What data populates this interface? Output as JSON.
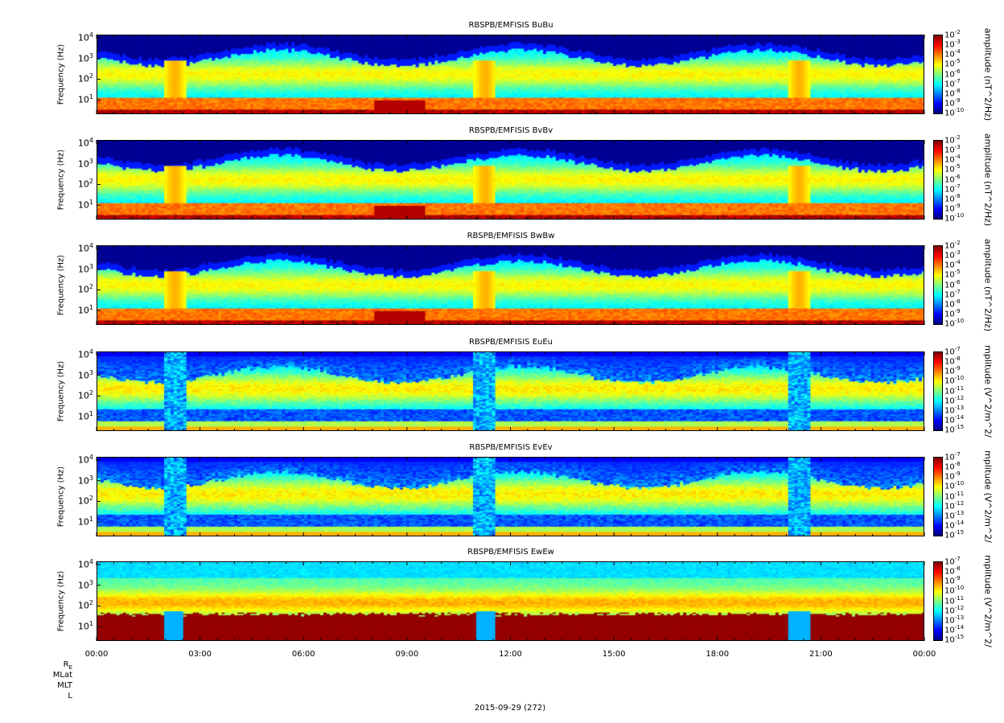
{
  "chart_data": [
    {
      "type": "heatmap",
      "title": "RBSPB/EMFISIS  BuBu",
      "ylabel": "Frequency (Hz)",
      "colorbar_label": "amplitude (nT^2/Hz)",
      "yscale": "log",
      "yticks": [
        "10^1",
        "10^2",
        "10^3",
        "10^4"
      ],
      "colorbar_ticks": [
        "10^-2",
        "10^-3",
        "10^-4",
        "10^-5",
        "10^-6",
        "10^-7",
        "10^-8",
        "10^-9",
        "10^-10"
      ],
      "xticks": [
        "00:00",
        "03:00",
        "06:00",
        "09:00",
        "12:00",
        "15:00",
        "18:00",
        "21:00",
        "00:00"
      ],
      "variant": "B"
    },
    {
      "type": "heatmap",
      "title": "RBSPB/EMFISIS  BvBv",
      "ylabel": "Frequency (Hz)",
      "colorbar_label": "amplitude (nT^2/Hz)",
      "yscale": "log",
      "yticks": [
        "10^1",
        "10^2",
        "10^3",
        "10^4"
      ],
      "colorbar_ticks": [
        "10^-2",
        "10^-3",
        "10^-4",
        "10^-5",
        "10^-6",
        "10^-7",
        "10^-8",
        "10^-9",
        "10^-10"
      ],
      "xticks": [
        "00:00",
        "03:00",
        "06:00",
        "09:00",
        "12:00",
        "15:00",
        "18:00",
        "21:00",
        "00:00"
      ],
      "variant": "B"
    },
    {
      "type": "heatmap",
      "title": "RBSPB/EMFISIS  BwBw",
      "ylabel": "Frequency (Hz)",
      "colorbar_label": "amplitude (nT^2/Hz)",
      "yscale": "log",
      "yticks": [
        "10^1",
        "10^2",
        "10^3",
        "10^4"
      ],
      "colorbar_ticks": [
        "10^-2",
        "10^-3",
        "10^-4",
        "10^-5",
        "10^-6",
        "10^-7",
        "10^-8",
        "10^-9",
        "10^-10"
      ],
      "xticks": [
        "00:00",
        "03:00",
        "06:00",
        "09:00",
        "12:00",
        "15:00",
        "18:00",
        "21:00",
        "00:00"
      ],
      "variant": "B"
    },
    {
      "type": "heatmap",
      "title": "RBSPB/EMFISIS  EuEu",
      "ylabel": "Frequency (Hz)",
      "colorbar_label": "mplitude (V^2/m^2/",
      "yscale": "log",
      "yticks": [
        "10^1",
        "10^2",
        "10^3",
        "10^4"
      ],
      "colorbar_ticks": [
        "10^-7",
        "10^-8",
        "10^-9",
        "10^-10",
        "10^-11",
        "10^-12",
        "10^-13",
        "10^-14",
        "10^-15"
      ],
      "xticks": [
        "00:00",
        "03:00",
        "06:00",
        "09:00",
        "12:00",
        "15:00",
        "18:00",
        "21:00",
        "00:00"
      ],
      "variant": "E"
    },
    {
      "type": "heatmap",
      "title": "RBSPB/EMFISIS  EvEv",
      "ylabel": "Frequency (Hz)",
      "colorbar_label": "mplitude (V^2/m^2/",
      "yscale": "log",
      "yticks": [
        "10^1",
        "10^2",
        "10^3",
        "10^4"
      ],
      "colorbar_ticks": [
        "10^-7",
        "10^-8",
        "10^-9",
        "10^-10",
        "10^-11",
        "10^-12",
        "10^-13",
        "10^-14",
        "10^-15"
      ],
      "xticks": [
        "00:00",
        "03:00",
        "06:00",
        "09:00",
        "12:00",
        "15:00",
        "18:00",
        "21:00",
        "00:00"
      ],
      "variant": "E"
    },
    {
      "type": "heatmap",
      "title": "RBSPB/EMFISIS  EwEw",
      "ylabel": "Frequency (Hz)",
      "colorbar_label": "mplitude (V^2/m^2/",
      "yscale": "log",
      "yticks": [
        "10^1",
        "10^2",
        "10^3",
        "10^4"
      ],
      "colorbar_ticks": [
        "10^-7",
        "10^-8",
        "10^-9",
        "10^-10",
        "10^-11",
        "10^-12",
        "10^-13",
        "10^-14",
        "10^-15"
      ],
      "xticks": [
        "00:00",
        "03:00",
        "06:00",
        "09:00",
        "12:00",
        "15:00",
        "18:00",
        "21:00",
        "00:00"
      ],
      "variant": "W"
    }
  ],
  "ephemeris_labels": [
    "R_E",
    "MLat",
    "MLT",
    "L"
  ],
  "date_label": "2015-09-29 (272)"
}
